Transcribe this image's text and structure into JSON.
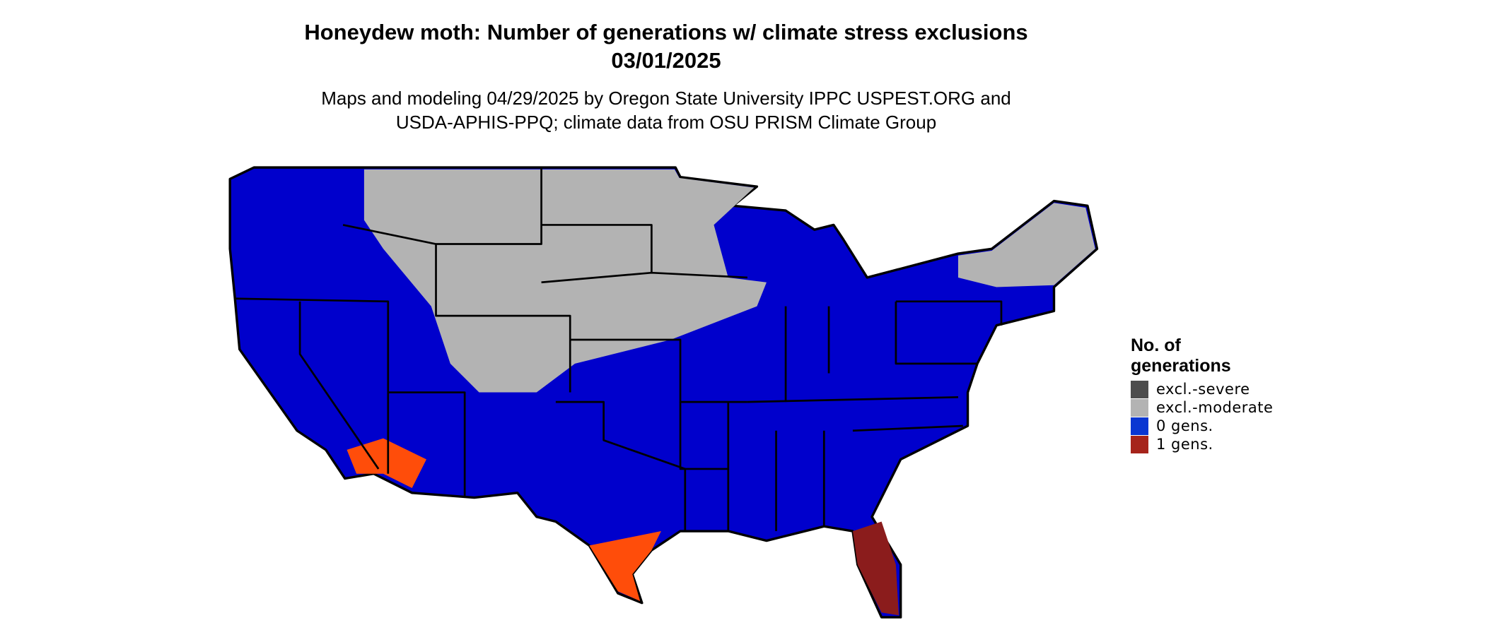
{
  "header": {
    "title": "Honeydew moth: Number of generations w/ climate stress exclusions",
    "date": "03/01/2025",
    "subtitle": [
      "Maps and modeling 04/29/2025 by Oregon State University IPPC USPEST.ORG and",
      "USDA-APHIS-PPQ; climate data from OSU PRISM Climate Group"
    ]
  },
  "legend": {
    "title": [
      "No. of",
      "generations"
    ],
    "entries": [
      {
        "label": "excl.-severe",
        "color": "#4d4d4d"
      },
      {
        "label": "excl.-moderate",
        "color": "#b3b3b3"
      },
      {
        "label": "0 gens.",
        "color": "#0a36d2"
      },
      {
        "label": "1 gens.",
        "color": "#a6241b"
      }
    ]
  }
}
